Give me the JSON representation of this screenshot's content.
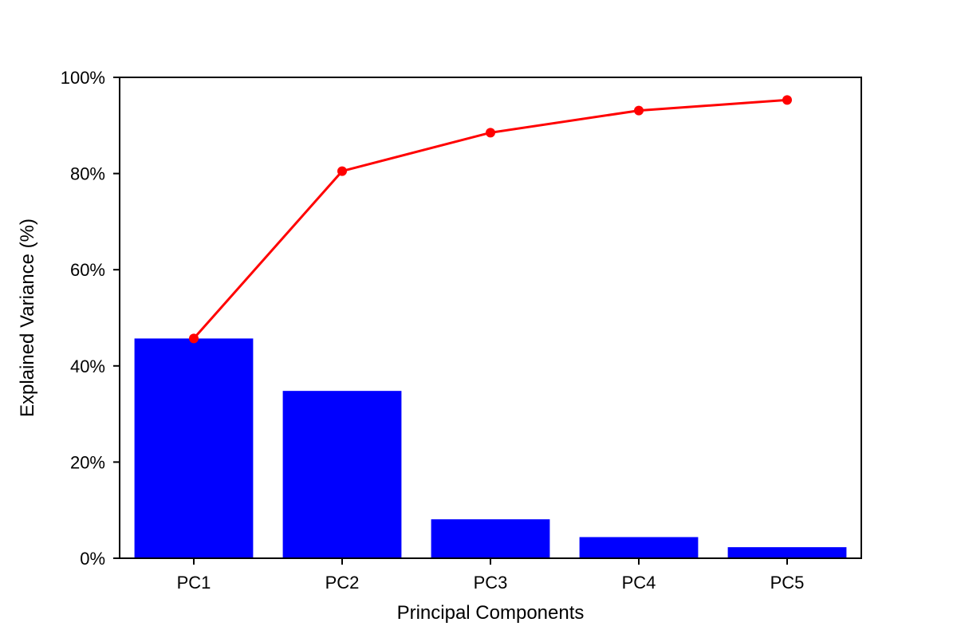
{
  "chart_data": {
    "type": "bar",
    "title": "",
    "categories": [
      "PC1",
      "PC2",
      "PC3",
      "PC4",
      "PC5"
    ],
    "series": [
      {
        "kind": "bar",
        "values": [
          45.7,
          34.8,
          8.1,
          4.4,
          2.3
        ]
      },
      {
        "kind": "line",
        "values": [
          45.7,
          80.5,
          88.5,
          93.1,
          95.3
        ]
      }
    ],
    "xlabel": "Principal Components",
    "ylabel": "Explained Variance (%)",
    "ylim": [
      0,
      100
    ],
    "yticks": [
      0,
      20,
      40,
      60,
      80,
      100
    ],
    "ytick_labels": [
      "0%",
      "20%",
      "40%",
      "60%",
      "80%",
      "100%"
    ],
    "grid": false,
    "colors": {
      "bar": "#0000ff",
      "line": "#ff0000",
      "axes": "#000000"
    }
  }
}
